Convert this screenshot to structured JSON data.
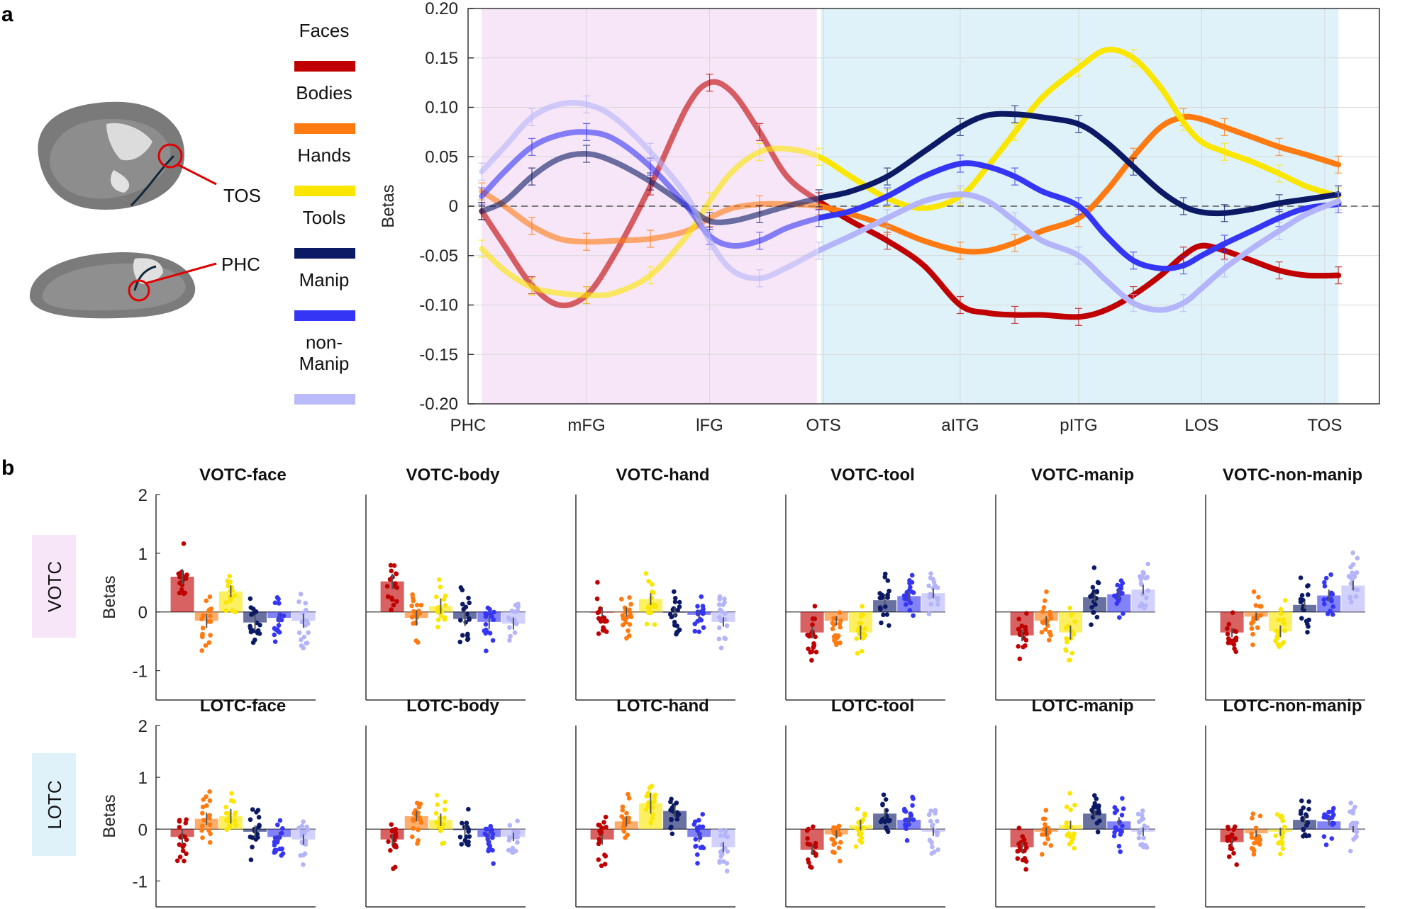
{
  "panel_labels": {
    "a": "a",
    "b": "b"
  },
  "brain": {
    "label_tos": "TOS",
    "label_phc": "PHC"
  },
  "legend": [
    {
      "name": "Faces",
      "color": "#c00000"
    },
    {
      "name": "Bodies",
      "color": "#ff7a10"
    },
    {
      "name": "Hands",
      "color": "#fae600"
    },
    {
      "name": "Tools",
      "color": "#0c1a66"
    },
    {
      "name": "Manip",
      "color": "#3535f5"
    },
    {
      "name": "non-\nManip",
      "color": "#b4b4fa"
    }
  ],
  "row_labels": {
    "votc": "VOTC",
    "lotc": "LOTC"
  },
  "chart_data": [
    {
      "id": "line-profile",
      "type": "line",
      "title": "",
      "ylabel": "Betas",
      "xlabel": "",
      "ylim": [
        -0.2,
        0.2
      ],
      "yticks": [
        -0.2,
        -0.15,
        -0.1,
        -0.05,
        0,
        0.05,
        0.1,
        0.15,
        0.2
      ],
      "ytick_labels": [
        "-0.20",
        "-0.15",
        "-0.10",
        "-0.05",
        "0",
        "0.05",
        "0.10",
        "0.15",
        "0.20"
      ],
      "xlim": [
        0,
        100
      ],
      "xtick_positions": [
        0,
        13,
        26.5,
        39,
        54,
        67,
        80.5,
        94
      ],
      "xtick_labels": [
        "PHC",
        "mFG",
        "lFG",
        "OTS",
        "aITG",
        "pITG",
        "LOS",
        "TOS"
      ],
      "regions": [
        {
          "name": "VOTC",
          "from": 1.5,
          "to": 38.5,
          "color": "#f7e6f7"
        },
        {
          "name": "LOTC",
          "from": 38.5,
          "to": 95.5,
          "color": "#dff2fa"
        }
      ],
      "series": [
        {
          "name": "Faces",
          "color": "#c00000",
          "x": [
            1.5,
            4,
            7,
            10,
            13,
            16,
            20,
            24,
            26.5,
            29,
            32,
            35,
            38.5,
            42,
            46,
            50,
            54,
            57,
            60,
            63,
            67,
            70,
            73,
            76,
            78.5,
            80.5,
            83,
            86,
            89,
            92,
            95.5
          ],
          "y": [
            -0.005,
            -0.04,
            -0.08,
            -0.1,
            -0.09,
            -0.05,
            0.02,
            0.1,
            0.125,
            0.115,
            0.075,
            0.03,
            0.005,
            -0.015,
            -0.035,
            -0.06,
            -0.1,
            -0.108,
            -0.11,
            -0.11,
            -0.112,
            -0.105,
            -0.09,
            -0.07,
            -0.05,
            -0.04,
            -0.045,
            -0.055,
            -0.065,
            -0.07,
            -0.07
          ]
        },
        {
          "name": "Bodies",
          "color": "#ff7a10",
          "x": [
            1.5,
            4,
            7,
            10,
            13,
            16,
            20,
            24,
            26.5,
            29,
            32,
            35,
            38.5,
            42,
            46,
            50,
            54,
            57,
            60,
            63,
            67,
            70,
            73,
            76,
            78.5,
            80.5,
            83,
            86,
            89,
            92,
            95.5
          ],
          "y": [
            0.015,
            0,
            -0.02,
            -0.033,
            -0.036,
            -0.035,
            -0.033,
            -0.025,
            -0.012,
            -0.002,
            0.002,
            0.002,
            0,
            -0.008,
            -0.02,
            -0.035,
            -0.045,
            -0.045,
            -0.037,
            -0.025,
            -0.012,
            0.015,
            0.05,
            0.08,
            0.09,
            0.088,
            0.08,
            0.07,
            0.06,
            0.052,
            0.042
          ]
        },
        {
          "name": "Hands",
          "color": "#fae600",
          "x": [
            1.5,
            4,
            7,
            10,
            13,
            16,
            20,
            24,
            26.5,
            29,
            32,
            35,
            38.5,
            42,
            46,
            50,
            54,
            57,
            60,
            63,
            67,
            70,
            73,
            76,
            78.5,
            80.5,
            83,
            86,
            89,
            92,
            95.5
          ],
          "y": [
            -0.043,
            -0.065,
            -0.082,
            -0.088,
            -0.09,
            -0.088,
            -0.07,
            -0.03,
            0.005,
            0.035,
            0.055,
            0.058,
            0.05,
            0.03,
            0.008,
            -0.002,
            0.01,
            0.04,
            0.075,
            0.11,
            0.14,
            0.158,
            0.15,
            0.12,
            0.085,
            0.065,
            0.055,
            0.045,
            0.033,
            0.02,
            0.01
          ]
        },
        {
          "name": "Tools",
          "color": "#0c1a66",
          "x": [
            1.5,
            4,
            7,
            10,
            13,
            16,
            20,
            24,
            26.5,
            29,
            32,
            35,
            38.5,
            42,
            46,
            50,
            54,
            57,
            60,
            63,
            67,
            70,
            73,
            76,
            78.5,
            80.5,
            83,
            86,
            89,
            92,
            95.5
          ],
          "y": [
            -0.005,
            0.005,
            0.03,
            0.048,
            0.053,
            0.045,
            0.025,
            0,
            -0.015,
            -0.015,
            -0.008,
            0,
            0.008,
            0.015,
            0.03,
            0.055,
            0.08,
            0.092,
            0.093,
            0.09,
            0.083,
            0.065,
            0.04,
            0.015,
            0,
            -0.006,
            -0.007,
            -0.003,
            0.003,
            0.007,
            0.012
          ]
        },
        {
          "name": "Manip",
          "color": "#3535f5",
          "x": [
            1.5,
            4,
            7,
            10,
            13,
            16,
            20,
            24,
            26.5,
            29,
            32,
            35,
            38.5,
            42,
            46,
            50,
            54,
            57,
            60,
            63,
            67,
            70,
            73,
            76,
            78.5,
            80.5,
            83,
            86,
            89,
            92,
            95.5
          ],
          "y": [
            0.01,
            0.035,
            0.06,
            0.072,
            0.075,
            0.068,
            0.04,
            0,
            -0.03,
            -0.04,
            -0.035,
            -0.022,
            -0.012,
            -0.005,
            0.01,
            0.03,
            0.043,
            0.04,
            0.03,
            0.015,
            0,
            -0.03,
            -0.055,
            -0.063,
            -0.06,
            -0.05,
            -0.038,
            -0.025,
            -0.012,
            -0.002,
            0.002
          ]
        },
        {
          "name": "non-Manip",
          "color": "#b4b4fa",
          "x": [
            1.5,
            4,
            7,
            10,
            13,
            16,
            20,
            24,
            26.5,
            29,
            32,
            35,
            38.5,
            42,
            46,
            50,
            54,
            57,
            60,
            63,
            67,
            70,
            73,
            76,
            78.5,
            80.5,
            83,
            86,
            89,
            92,
            95.5
          ],
          "y": [
            0.035,
            0.06,
            0.09,
            0.103,
            0.103,
            0.09,
            0.055,
            0.01,
            -0.035,
            -0.065,
            -0.073,
            -0.062,
            -0.045,
            -0.03,
            -0.012,
            0.005,
            0.012,
            0.005,
            -0.015,
            -0.035,
            -0.05,
            -0.075,
            -0.098,
            -0.105,
            -0.098,
            -0.083,
            -0.063,
            -0.043,
            -0.025,
            -0.008,
            0.005
          ]
        }
      ]
    },
    {
      "id": "bar-grid",
      "type": "bar",
      "ylabel": "Betas",
      "ylim": [
        -1.5,
        2
      ],
      "yticks": [
        -1,
        0,
        1,
        2
      ],
      "ytick_labels": [
        "-1",
        "0",
        "1",
        "2"
      ],
      "categories": [
        "Faces",
        "Bodies",
        "Hands",
        "Tools",
        "Manip",
        "non-Manip"
      ],
      "panels": [
        {
          "title": "VOTC-face",
          "values": [
            0.6,
            -0.15,
            0.35,
            -0.18,
            -0.1,
            -0.15
          ],
          "err": [
            0.13,
            0.12,
            0.1,
            0.14,
            0.1,
            0.12
          ]
        },
        {
          "title": "VOTC-body",
          "values": [
            0.52,
            -0.1,
            0.1,
            -0.12,
            -0.17,
            -0.2
          ],
          "err": [
            0.13,
            0.13,
            0.13,
            0.12,
            0.12,
            0.1
          ]
        },
        {
          "title": "VOTC-hand",
          "values": [
            0,
            0,
            0.22,
            0,
            -0.05,
            -0.17
          ],
          "err": [
            0.08,
            0.08,
            0.1,
            0.08,
            0.08,
            0.08
          ]
        },
        {
          "title": "VOTC-tool",
          "values": [
            -0.35,
            -0.15,
            -0.35,
            0.2,
            0.27,
            0.32
          ],
          "err": [
            0.1,
            0.08,
            0.12,
            0.08,
            0.08,
            0.08
          ]
        },
        {
          "title": "VOTC-manip",
          "values": [
            -0.4,
            -0.15,
            -0.35,
            0.25,
            0.3,
            0.38
          ],
          "err": [
            0.1,
            0.08,
            0.12,
            0.08,
            0.08,
            0.08
          ]
        },
        {
          "title": "VOTC-non-manip",
          "values": [
            -0.35,
            -0.08,
            -0.33,
            0.12,
            0.28,
            0.45
          ],
          "err": [
            0.08,
            0.07,
            0.1,
            0.07,
            0.1,
            0.08
          ]
        },
        {
          "title": "LOTC-face",
          "values": [
            -0.15,
            0.2,
            0.25,
            -0.05,
            -0.15,
            -0.2
          ],
          "err": [
            0.14,
            0.12,
            0.14,
            0.12,
            0.1,
            0.1
          ]
        },
        {
          "title": "LOTC-body",
          "values": [
            -0.2,
            0.25,
            0.18,
            -0.02,
            -0.15,
            -0.15
          ],
          "err": [
            0.1,
            0.1,
            0.12,
            0.1,
            0.1,
            0.08
          ]
        },
        {
          "title": "LOTC-hand",
          "values": [
            -0.2,
            0.15,
            0.5,
            0.35,
            -0.15,
            -0.35
          ],
          "err": [
            0.1,
            0.1,
            0.2,
            0.12,
            0.1,
            0.1
          ]
        },
        {
          "title": "LOTC-tool",
          "values": [
            -0.4,
            -0.1,
            0.08,
            0.3,
            0.18,
            -0.05
          ],
          "err": [
            0.1,
            0.08,
            0.1,
            0.1,
            0.08,
            0.08
          ]
        },
        {
          "title": "LOTC-manip",
          "values": [
            -0.35,
            -0.05,
            0.08,
            0.3,
            0.15,
            -0.05
          ],
          "err": [
            0.1,
            0.08,
            0.08,
            0.08,
            0.08,
            0.08
          ]
        },
        {
          "title": "LOTC-non-manip",
          "values": [
            -0.25,
            -0.08,
            -0.05,
            0.18,
            0.15,
            0
          ],
          "err": [
            0.08,
            0.07,
            0.08,
            0.08,
            0.08,
            0.06
          ]
        }
      ]
    }
  ]
}
